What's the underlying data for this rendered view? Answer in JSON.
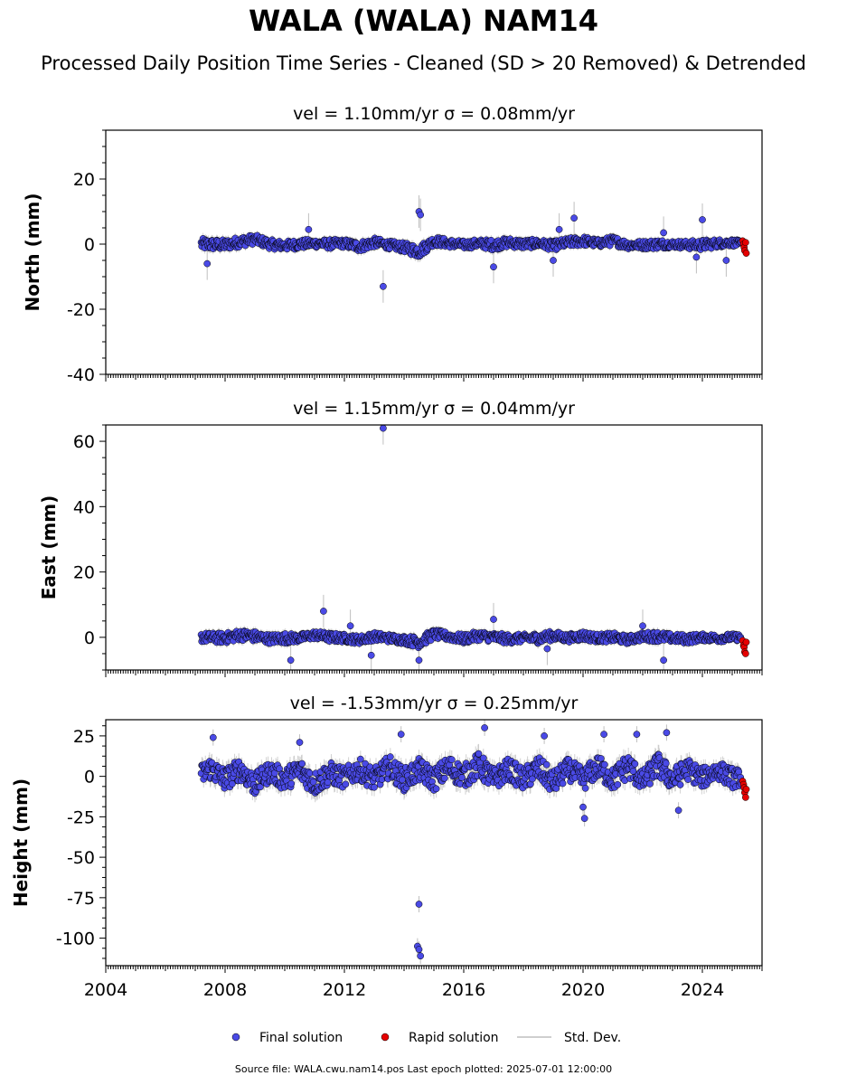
{
  "header": {
    "title": "WALA (WALA) NAM14",
    "subtitle": "Processed Daily Position Time Series - Cleaned (SD > 20 Removed) & Detrended"
  },
  "colors": {
    "final": "#4a4ae6",
    "rapid": "#e60000",
    "stddev": "#bfbfbf",
    "edge": "#000000"
  },
  "legend": {
    "final": "Final solution",
    "rapid": "Rapid solution",
    "stddev": "Std. Dev."
  },
  "footer": "Source file: WALA.cwu.nam14.pos  Last epoch plotted: 2025-07-01 12:00:00",
  "chart_data": [
    {
      "type": "scatter",
      "component": "north",
      "title": "vel = 1.10mm/yr   σ = 0.08mm/yr",
      "ylabel": "North (mm)",
      "xlim": [
        2004.0,
        2026.0
      ],
      "ylim": [
        -40,
        35
      ],
      "yticks": [
        20,
        0,
        -20,
        -40
      ],
      "envelope": [
        [
          2007.2,
          -2.5,
          2.5
        ],
        [
          2008.0,
          -2.5,
          2.0
        ],
        [
          2008.5,
          -1.5,
          3.0
        ],
        [
          2009.0,
          -0.5,
          3.5
        ],
        [
          2009.5,
          -2.0,
          2.0
        ],
        [
          2010.0,
          -2.5,
          1.5
        ],
        [
          2010.5,
          -2.0,
          2.0
        ],
        [
          2011.0,
          -1.5,
          2.0
        ],
        [
          2011.5,
          -2.0,
          2.0
        ],
        [
          2012.0,
          -1.5,
          2.0
        ],
        [
          2012.5,
          -3.0,
          1.5
        ],
        [
          2013.0,
          -1.5,
          2.5
        ],
        [
          2013.5,
          -2.0,
          1.5
        ],
        [
          2014.0,
          -3.0,
          1.0
        ],
        [
          2014.5,
          -5.0,
          0.5
        ],
        [
          2015.0,
          -1.0,
          3.0
        ],
        [
          2015.5,
          -1.5,
          2.0
        ],
        [
          2016.0,
          -2.0,
          1.5
        ],
        [
          2016.5,
          -1.5,
          2.0
        ],
        [
          2017.0,
          -2.5,
          2.0
        ],
        [
          2017.5,
          -1.5,
          2.5
        ],
        [
          2018.0,
          -2.0,
          2.0
        ],
        [
          2018.5,
          -1.5,
          2.0
        ],
        [
          2019.0,
          -2.5,
          1.5
        ],
        [
          2019.5,
          -1.5,
          2.5
        ],
        [
          2020.0,
          -1.0,
          3.0
        ],
        [
          2020.5,
          -1.5,
          2.0
        ],
        [
          2021.0,
          -1.0,
          3.0
        ],
        [
          2021.5,
          -2.0,
          1.5
        ],
        [
          2022.0,
          -2.0,
          1.5
        ],
        [
          2022.5,
          -2.0,
          2.0
        ],
        [
          2023.0,
          -1.5,
          1.5
        ],
        [
          2023.5,
          -2.0,
          1.5
        ],
        [
          2024.0,
          -2.5,
          2.0
        ],
        [
          2024.5,
          -1.5,
          2.0
        ],
        [
          2025.0,
          -1.0,
          2.0
        ],
        [
          2025.3,
          -1.5,
          1.5
        ]
      ],
      "outliers": [
        [
          2007.4,
          -6
        ],
        [
          2010.8,
          4.5
        ],
        [
          2013.3,
          -13
        ],
        [
          2014.5,
          10
        ],
        [
          2014.55,
          9
        ],
        [
          2017.0,
          -7
        ],
        [
          2019.7,
          8
        ],
        [
          2019.2,
          4.5
        ],
        [
          2022.7,
          3.5
        ],
        [
          2023.8,
          -4
        ],
        [
          2024.0,
          7.5
        ],
        [
          2019.0,
          -5
        ],
        [
          2024.8,
          -5
        ]
      ],
      "rapid": [
        [
          2025.35,
          1
        ],
        [
          2025.38,
          0
        ],
        [
          2025.4,
          -1
        ],
        [
          2025.42,
          -2
        ],
        [
          2025.45,
          0.5
        ],
        [
          2025.47,
          -2.8
        ]
      ]
    },
    {
      "type": "scatter",
      "component": "east",
      "title": "vel = 1.15mm/yr   σ = 0.04mm/yr",
      "ylabel": "East (mm)",
      "xlim": [
        2004.0,
        2026.0
      ],
      "ylim": [
        -10,
        65
      ],
      "yticks": [
        60,
        40,
        20,
        0
      ],
      "envelope": [
        [
          2007.2,
          -2.0,
          2.0
        ],
        [
          2008.0,
          -2.5,
          2.0
        ],
        [
          2008.5,
          -1.5,
          3.0
        ],
        [
          2009.0,
          -2.0,
          2.5
        ],
        [
          2009.5,
          -2.5,
          1.5
        ],
        [
          2010.0,
          -2.5,
          2.0
        ],
        [
          2010.5,
          -2.0,
          1.5
        ],
        [
          2011.0,
          -1.0,
          2.5
        ],
        [
          2011.5,
          -2.0,
          2.0
        ],
        [
          2012.0,
          -2.0,
          1.5
        ],
        [
          2012.5,
          -2.5,
          1.0
        ],
        [
          2013.0,
          -1.5,
          2.0
        ],
        [
          2013.5,
          -2.0,
          1.5
        ],
        [
          2014.0,
          -2.5,
          1.0
        ],
        [
          2014.5,
          -4.0,
          1.0
        ],
        [
          2015.0,
          -1.0,
          3.0
        ],
        [
          2015.5,
          -1.5,
          2.0
        ],
        [
          2016.0,
          -2.5,
          1.5
        ],
        [
          2016.5,
          -1.5,
          2.5
        ],
        [
          2017.0,
          -2.0,
          2.0
        ],
        [
          2017.5,
          -2.5,
          1.5
        ],
        [
          2018.0,
          -2.0,
          1.5
        ],
        [
          2018.5,
          -2.5,
          2.0
        ],
        [
          2019.0,
          -1.5,
          2.5
        ],
        [
          2019.5,
          -2.0,
          1.5
        ],
        [
          2020.0,
          -1.5,
          2.5
        ],
        [
          2020.5,
          -2.0,
          1.5
        ],
        [
          2021.0,
          -2.0,
          2.0
        ],
        [
          2021.5,
          -2.5,
          1.0
        ],
        [
          2022.0,
          -1.5,
          2.0
        ],
        [
          2022.5,
          -2.0,
          2.5
        ],
        [
          2023.0,
          -2.0,
          1.5
        ],
        [
          2023.5,
          -2.5,
          1.5
        ],
        [
          2024.0,
          -1.5,
          1.5
        ],
        [
          2024.5,
          -2.0,
          1.5
        ],
        [
          2025.0,
          -1.5,
          1.5
        ],
        [
          2025.3,
          -1.5,
          1.5
        ]
      ],
      "outliers": [
        [
          2010.2,
          -7
        ],
        [
          2011.3,
          8
        ],
        [
          2012.2,
          3.5
        ],
        [
          2013.3,
          64
        ],
        [
          2014.5,
          -7
        ],
        [
          2017.0,
          5.5
        ],
        [
          2022.0,
          3.5
        ],
        [
          2022.7,
          -7
        ],
        [
          2012.9,
          -5.5
        ],
        [
          2018.8,
          -3.5
        ]
      ],
      "rapid": [
        [
          2025.35,
          -1
        ],
        [
          2025.38,
          -2.5
        ],
        [
          2025.4,
          -3
        ],
        [
          2025.42,
          -4.5
        ],
        [
          2025.45,
          -5
        ],
        [
          2025.47,
          -1.5
        ]
      ]
    },
    {
      "type": "scatter",
      "component": "height",
      "title": "vel = -1.53mm/yr   σ = 0.25mm/yr",
      "ylabel": "Height (mm)",
      "xlim": [
        2004.0,
        2026.0
      ],
      "ylim": [
        -117,
        35
      ],
      "yticks": [
        25,
        0,
        -25,
        -50,
        -75,
        -100
      ],
      "envelope": [
        [
          2007.2,
          -8,
          10
        ],
        [
          2007.5,
          -5,
          15
        ],
        [
          2008.0,
          -12,
          8
        ],
        [
          2008.5,
          -5,
          14
        ],
        [
          2009.0,
          -15,
          5
        ],
        [
          2009.5,
          -6,
          12
        ],
        [
          2010.0,
          -12,
          8
        ],
        [
          2010.5,
          -6,
          14
        ],
        [
          2011.0,
          -15,
          6
        ],
        [
          2011.5,
          -8,
          12
        ],
        [
          2012.0,
          -10,
          8
        ],
        [
          2012.5,
          -5,
          14
        ],
        [
          2013.0,
          -12,
          8
        ],
        [
          2013.5,
          -4,
          16
        ],
        [
          2014.0,
          -12,
          8
        ],
        [
          2014.5,
          -6,
          14
        ],
        [
          2015.0,
          -12,
          8
        ],
        [
          2015.5,
          -5,
          16
        ],
        [
          2016.0,
          -10,
          10
        ],
        [
          2016.5,
          -4,
          18
        ],
        [
          2017.0,
          -12,
          8
        ],
        [
          2017.5,
          -5,
          14
        ],
        [
          2018.0,
          -12,
          8
        ],
        [
          2018.5,
          -6,
          16
        ],
        [
          2019.0,
          -14,
          6
        ],
        [
          2019.5,
          -5,
          14
        ],
        [
          2020.0,
          -12,
          8
        ],
        [
          2020.5,
          -4,
          16
        ],
        [
          2021.0,
          -12,
          8
        ],
        [
          2021.5,
          -5,
          18
        ],
        [
          2022.0,
          -12,
          6
        ],
        [
          2022.5,
          -4,
          18
        ],
        [
          2023.0,
          -12,
          8
        ],
        [
          2023.5,
          -5,
          14
        ],
        [
          2024.0,
          -10,
          8
        ],
        [
          2024.5,
          -4,
          12
        ],
        [
          2025.0,
          -10,
          8
        ],
        [
          2025.3,
          -8,
          6
        ]
      ],
      "outliers": [
        [
          2014.5,
          -79
        ],
        [
          2014.45,
          -105
        ],
        [
          2014.5,
          -107
        ],
        [
          2014.55,
          -111
        ],
        [
          2016.7,
          30
        ],
        [
          2013.9,
          26
        ],
        [
          2020.0,
          -19
        ],
        [
          2020.05,
          -26
        ],
        [
          2022.8,
          27
        ],
        [
          2021.8,
          26
        ],
        [
          2007.6,
          24
        ],
        [
          2023.2,
          -21
        ],
        [
          2010.5,
          21
        ],
        [
          2018.7,
          25
        ],
        [
          2020.7,
          26
        ]
      ],
      "rapid": [
        [
          2025.35,
          -3
        ],
        [
          2025.38,
          -5
        ],
        [
          2025.4,
          -7
        ],
        [
          2025.42,
          -10
        ],
        [
          2025.45,
          -13
        ],
        [
          2025.47,
          -8
        ]
      ]
    }
  ],
  "xaxis": {
    "ticks": [
      2004,
      2008,
      2012,
      2016,
      2020,
      2024
    ],
    "labels": [
      "2004",
      "2008",
      "2012",
      "2016",
      "2020",
      "2024"
    ]
  }
}
